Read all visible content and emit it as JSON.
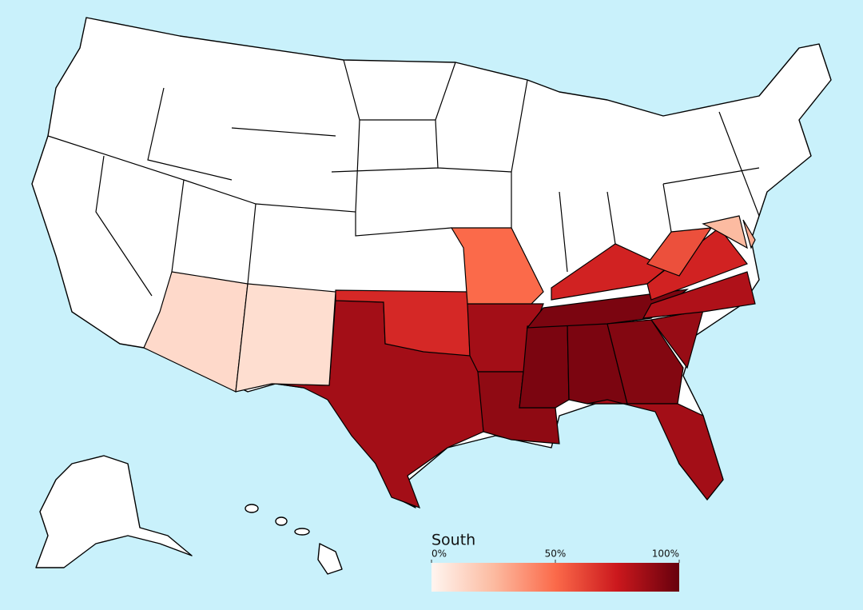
{
  "chart_data": {
    "type": "choropleth",
    "title": "South",
    "values": [
      85,
      70,
      85,
      90,
      95,
      95,
      95,
      93,
      85,
      88,
      82,
      72,
      72,
      58,
      50,
      25,
      30,
      12,
      10
    ],
    "colors": [
      "#fff5f0",
      "#fcbba1",
      "#fb6a4a",
      "#cb181d",
      "#67000d"
    ],
    "xlim": [
      0,
      100
    ],
    "xticks": [
      {
        "value": 0,
        "label": "0%"
      },
      {
        "value": 50,
        "label": "50%"
      },
      {
        "value": 100,
        "label": "100%"
      }
    ]
  }
}
